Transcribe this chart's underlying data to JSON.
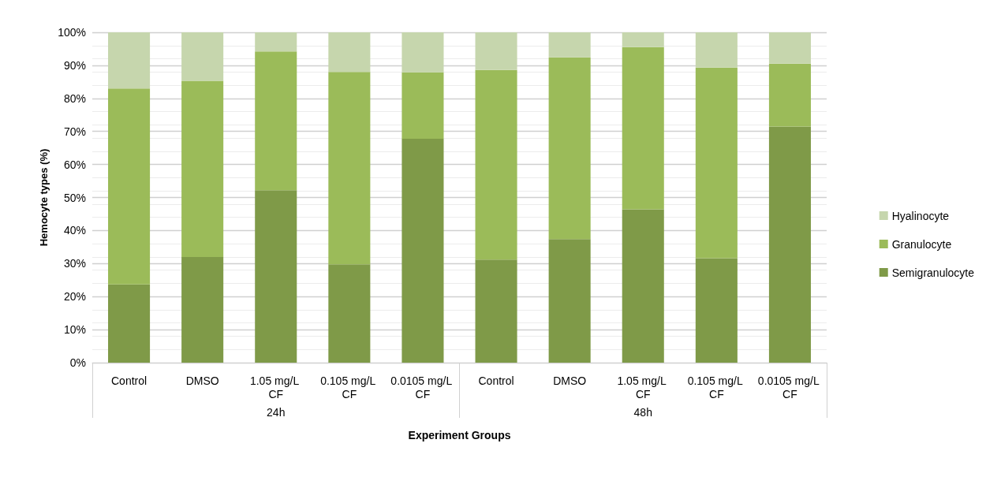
{
  "chart_data": {
    "type": "bar",
    "stacked": true,
    "xlabel": "Experiment Groups",
    "ylabel": "Hemocyte types (%)",
    "categories": [
      "Control",
      "DMSO",
      "1.05 mg/L CF",
      "0.105 mg/L CF",
      "0.0105 mg/L CF",
      "Control",
      "DMSO",
      "1.05 mg/L CF",
      "0.105 mg/L CF",
      "0.0105 mg/L CF"
    ],
    "annotations": [
      "24h",
      "48h"
    ],
    "series": [
      {
        "name": "Semigranulocyte",
        "color": "#7f9a48",
        "values": [
          23.7,
          32,
          52.2,
          29.8,
          67.8,
          31.2,
          37.4,
          46.4,
          31.6,
          71.5
        ]
      },
      {
        "name": "Granulocyte",
        "color": "#9bbb59",
        "values": [
          59.3,
          53.3,
          42,
          58.2,
          20.1,
          57.4,
          55,
          49.1,
          57.7,
          19
        ]
      },
      {
        "name": "Hyalinocyte",
        "color": "#c6d6ad",
        "values": [
          17,
          14.7,
          5.8,
          12,
          12.1,
          11.4,
          7.6,
          4.5,
          10.7,
          9.5
        ]
      }
    ],
    "ylim": [
      0,
      100
    ],
    "yticks": [
      {
        "value": 0,
        "label": "0%"
      },
      {
        "value": 10,
        "label": "10%"
      },
      {
        "value": 20,
        "label": "20%"
      },
      {
        "value": 30,
        "label": "30%"
      },
      {
        "value": 40,
        "label": "40%"
      },
      {
        "value": 50,
        "label": "50%"
      },
      {
        "value": 60,
        "label": "60%"
      },
      {
        "value": 70,
        "label": "70%"
      },
      {
        "value": 80,
        "label": "80%"
      },
      {
        "value": 90,
        "label": "90%"
      },
      {
        "value": 100,
        "label": "100%"
      }
    ],
    "grid": "y",
    "legend": "right"
  }
}
